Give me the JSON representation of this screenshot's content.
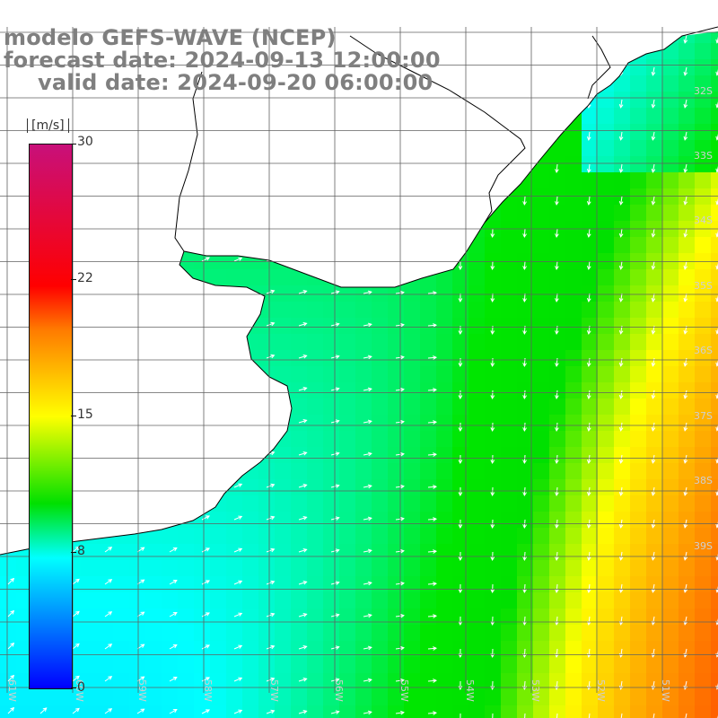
{
  "title": {
    "line1": "modelo GEFS-WAVE (NCEP)",
    "line2": "forecast date: 2024-09-13 12:00:00",
    "line3": "valid date: 2024-09-20 06:00:00"
  },
  "colorbar": {
    "unit": "[m/s]",
    "ticks": [
      "30",
      "22",
      "15",
      "8",
      "0"
    ],
    "tick_values": [
      30,
      22,
      15,
      8,
      0
    ],
    "min": 0,
    "max": 30,
    "colors": [
      "#0000ff",
      "#00aaff",
      "#00ffff",
      "#00e000",
      "#ffff00",
      "#ff7a00",
      "#ff0000",
      "#c8107a"
    ]
  },
  "lat_labels": [
    "32S",
    "33S",
    "34S",
    "35S",
    "36S",
    "37S",
    "38S",
    "39S"
  ],
  "lon_labels": [
    "61W",
    "60W",
    "59W",
    "58W",
    "57W",
    "56W",
    "55W",
    "54W",
    "53W",
    "52W",
    "51W"
  ],
  "map": {
    "land_color": "#ffffff",
    "grid_color": "#606060",
    "coast_color": "#000000",
    "arrow_color": "#ffffff"
  }
}
